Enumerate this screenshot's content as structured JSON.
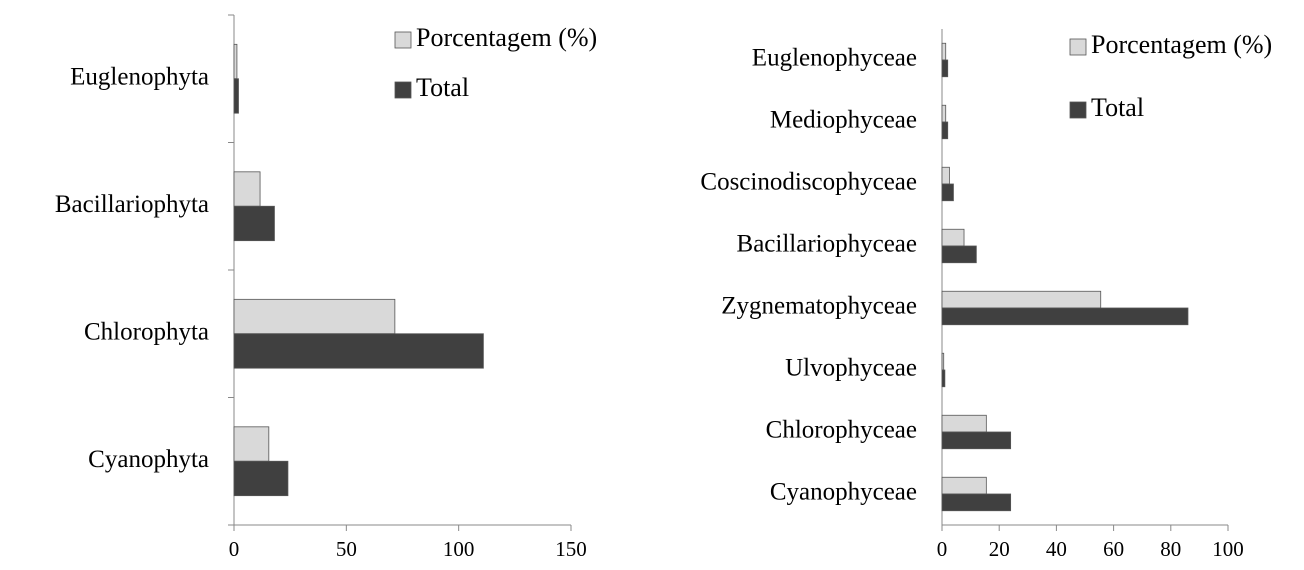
{
  "chart_data": [
    {
      "type": "bar",
      "orientation": "horizontal",
      "categories": [
        "Euglenophyta",
        "Bacillariophyta",
        "Chlorophyta",
        "Cyanophyta"
      ],
      "series": [
        {
          "name": "Porcentagem (%)",
          "color": "#d9d9d9",
          "values": [
            1.3,
            11.6,
            71.6,
            15.5
          ]
        },
        {
          "name": "Total",
          "color": "#404040",
          "values": [
            2,
            18,
            111,
            24
          ]
        }
      ],
      "xlim": [
        0,
        150
      ],
      "xticks": [
        0,
        50,
        100,
        150
      ]
    },
    {
      "type": "bar",
      "orientation": "horizontal",
      "categories": [
        "Euglenophyceae",
        "Mediophyceae",
        "Coscinodiscophyceae",
        "Bacillariophyceae",
        "Zygnematophyceae",
        "Ulvophyceae",
        "Chlorophyceae",
        "Cyanophyceae"
      ],
      "series": [
        {
          "name": "Porcentagem (%)",
          "color": "#d9d9d9",
          "values": [
            1.3,
            1.3,
            2.6,
            7.7,
            55.5,
            0.6,
            15.5,
            15.5
          ]
        },
        {
          "name": "Total",
          "color": "#404040",
          "values": [
            2,
            2,
            4,
            12,
            86,
            1,
            24,
            24
          ]
        }
      ],
      "xlim": [
        0,
        100
      ],
      "xticks": [
        0,
        20,
        40,
        60,
        80,
        100
      ]
    }
  ]
}
